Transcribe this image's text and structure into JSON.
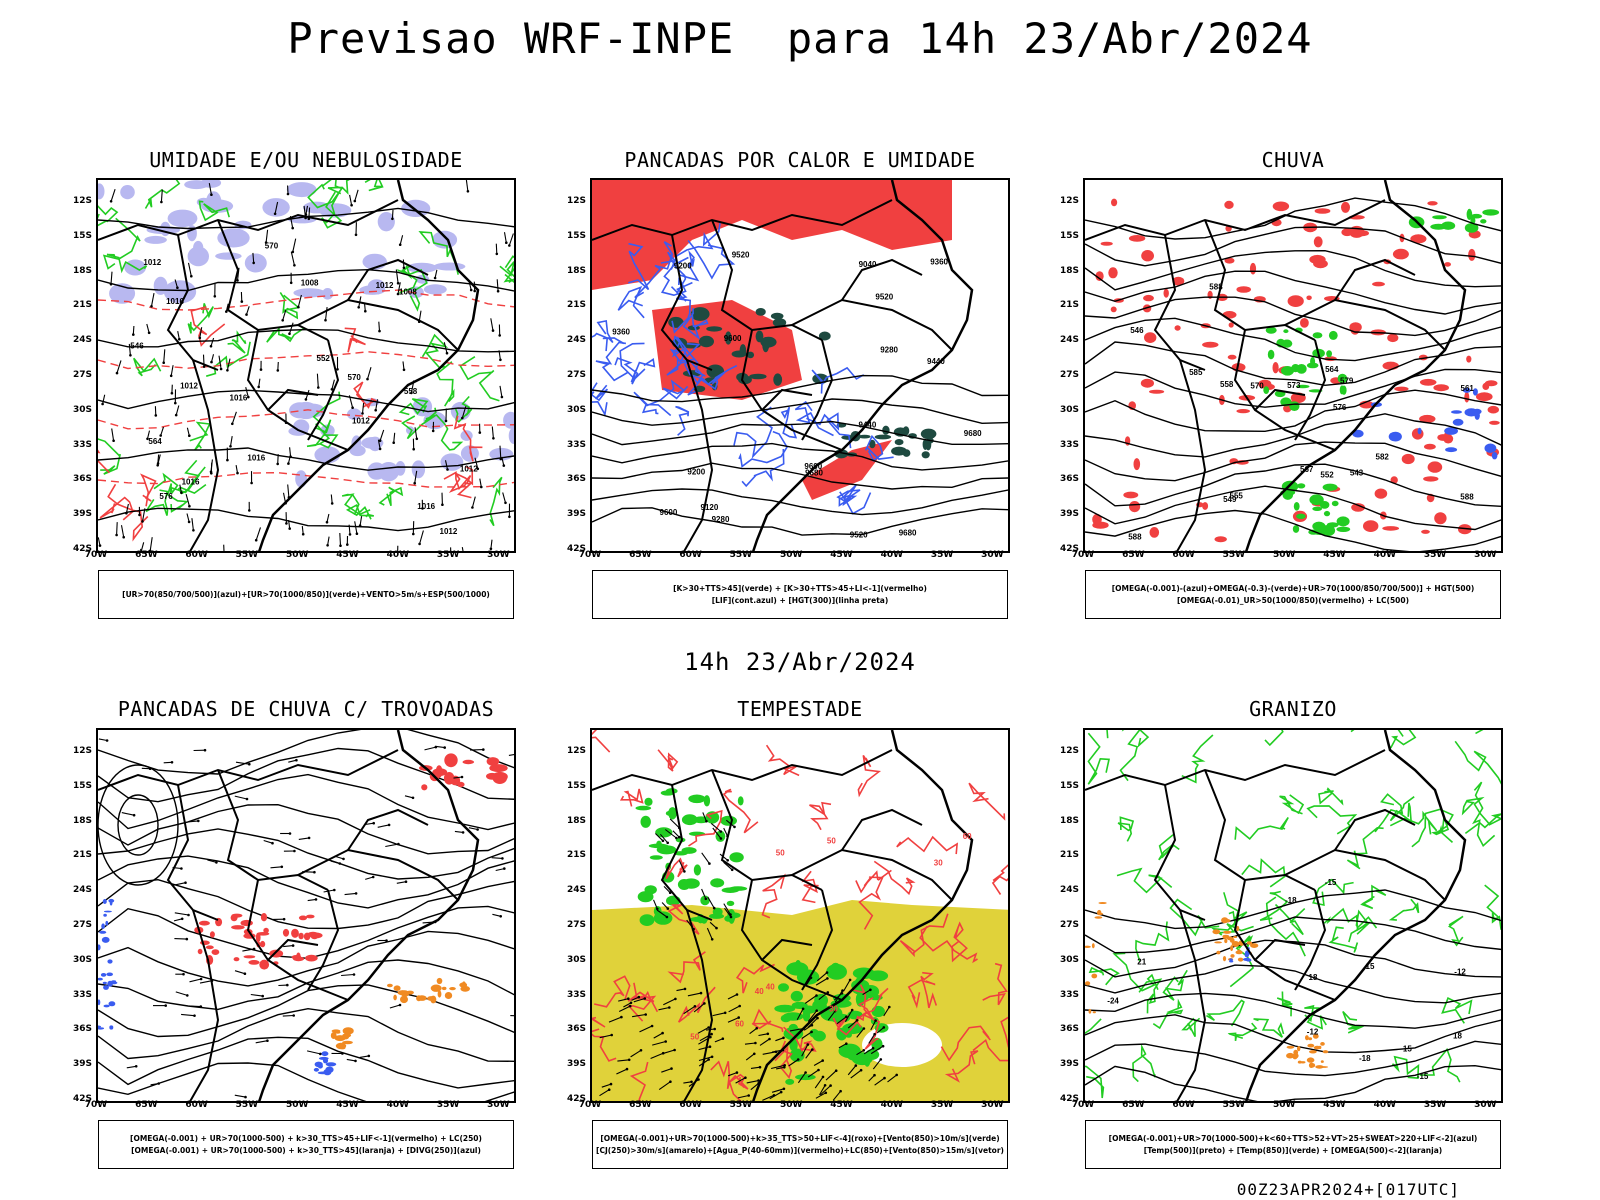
{
  "title": "Previsao WRF-INPE  para 14h 23/Abr/2024",
  "mid_title": "14h 23/Abr/2024",
  "footer": "00Z23APR2024+[017UTC]",
  "lat_labels": [
    "12S",
    "15S",
    "18S",
    "21S",
    "24S",
    "27S",
    "30S",
    "33S",
    "36S",
    "39S",
    "42S"
  ],
  "lon_labels": [
    "70W",
    "65W",
    "60W",
    "55W",
    "50W",
    "45W",
    "40W",
    "35W",
    "30W"
  ],
  "colors": {
    "blue": "#3a5cf0",
    "green": "#22cc22",
    "red": "#f04040",
    "dark_green": "#1e4a40",
    "yellow": "#e0d23a",
    "orange": "#f08a22",
    "lavender": "#b8b8f0"
  },
  "panels": [
    {
      "title": "UMIDADE E/OU NEBULOSIDADE",
      "legend": [
        "[UR>70(850/700/500)](azul)+[UR>70(1000/850)](verde)+VENTO>5m/s+ESP(500/1000)"
      ],
      "contour_labels": [
        "1012",
        "1012",
        "1012",
        "1012",
        "1012",
        "1016",
        "1016",
        "1016",
        "1008",
        "1008",
        "1012",
        "1016",
        "1016",
        "570",
        "570",
        "564",
        "558",
        "552",
        "546",
        "576"
      ]
    },
    {
      "title": "PANCADAS POR CALOR E UMIDADE",
      "legend": [
        "[K>30+TTS>45](verde) + [K>30+TTS>45+LI<-1](vermelho)",
        "[LIF](cont.azul) + [HGT(300)](linha preta)"
      ],
      "contour_labels": [
        "9680",
        "9680",
        "9680",
        "9600",
        "9600",
        "9600",
        "9520",
        "9520",
        "9520",
        "9440",
        "9440",
        "9360",
        "9360",
        "9280",
        "9280",
        "9200",
        "9200",
        "9120",
        "9040"
      ]
    },
    {
      "title": "CHUVA",
      "legend": [
        "[OMEGA(-0.001)-(azul)+OMEGA(-0.3)-(verde)+UR>70(1000/850/700/500)] + HGT(500)",
        "[OMEGA(-0.01)_UR>50(1000/850)(vermelho) + LC(500)"
      ],
      "contour_labels": [
        "588",
        "588",
        "588",
        "585",
        "582",
        "579",
        "576",
        "573",
        "570",
        "567",
        "564",
        "561",
        "558",
        "555",
        "552",
        "549",
        "546",
        "543"
      ]
    },
    {
      "title": "PANCADAS DE CHUVA C/ TROVOADAS",
      "legend": [
        "[OMEGA(-0.001) + UR>70(1000-500) + k>30_TTS>45+LIF<-1](vermelho) + LC(250)",
        "[OMEGA(-0.001) + UR>70(1000-500) + k>30_TTS>45](laranja) + [DIVG(250)](azul)"
      ],
      "contour_labels": []
    },
    {
      "title": "TEMPESTADE",
      "legend": [
        "[OMEGA(-0.001)+UR>70(1000-500)+k>35_TTS>50+LIF<-4](roxo)+[Vento(850)>10m/s](verde)",
        "[CJ(250)>30m/s](amarelo)+[Agua_P(40-60mm)](vermelho)+LC(850)+[Vento(850)>15m/s](vetor)"
      ],
      "contour_labels": [
        "40",
        "40",
        "50",
        "50",
        "50",
        "60",
        "60",
        "30",
        "30"
      ]
    },
    {
      "title": "GRANIZO",
      "legend": [
        "[OMEGA(-0.001)+UR>70(1000-500)+k<60+TTS>52+VT>25+SWEAT>220+LIF<-2](azul)",
        "[Temp(500)](preto) + [Temp(850)](verde) + [OMEGA(500)<-2](laranja)"
      ],
      "contour_labels": [
        "-12",
        "-12",
        "-15",
        "-15",
        "-18",
        "-18",
        "-24",
        "15",
        "15",
        "18",
        "18",
        "21"
      ]
    }
  ]
}
